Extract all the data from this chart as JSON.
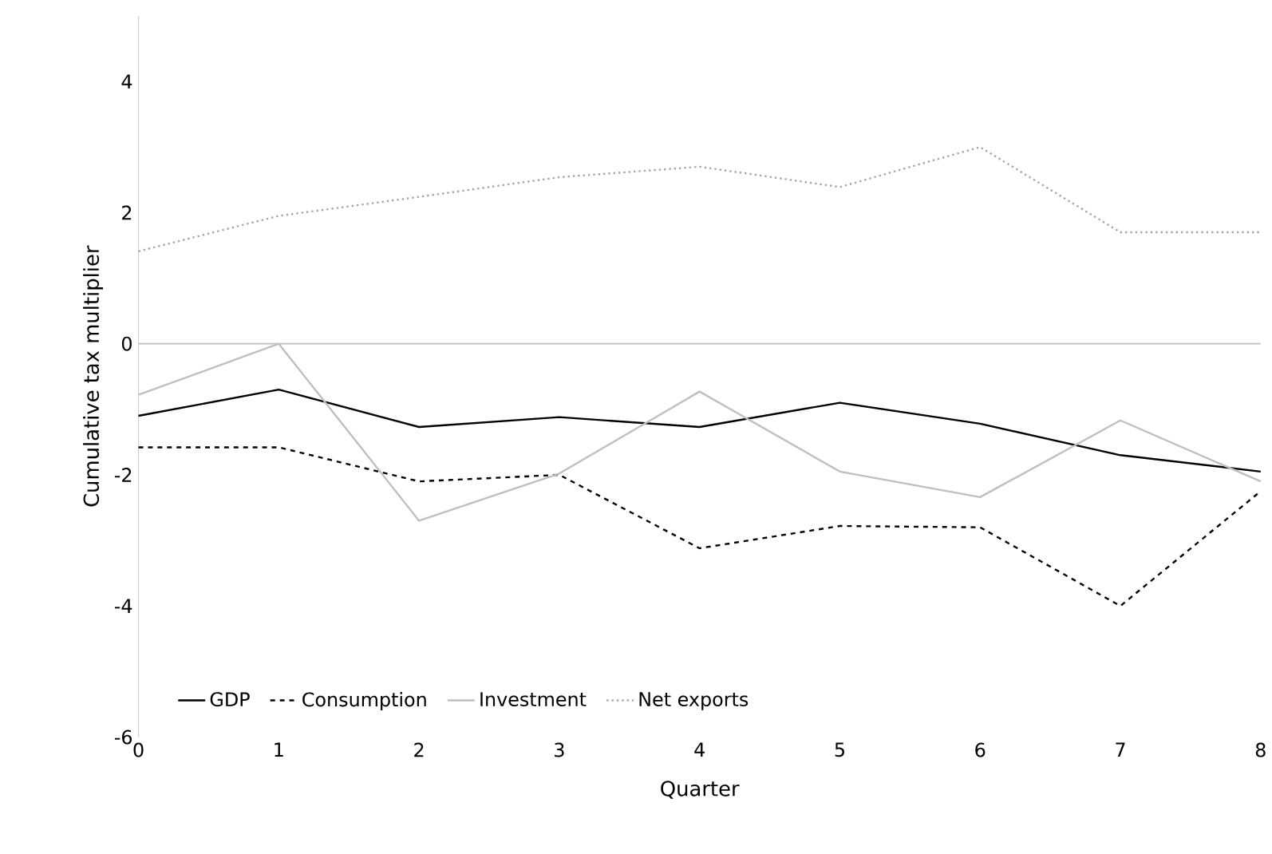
{
  "chart_data": {
    "type": "line",
    "xlabel": "Quarter",
    "ylabel": "Cumulative tax multiplier",
    "x": [
      0,
      1,
      2,
      3,
      4,
      5,
      6,
      7,
      8
    ],
    "series": [
      {
        "name": "GDP",
        "color": "#000000",
        "line_style": "solid",
        "values": [
          -1.1,
          -0.7,
          -1.27,
          -1.12,
          -1.27,
          -0.9,
          -1.22,
          -1.7,
          -1.95
        ]
      },
      {
        "name": "Consumption",
        "color": "#000000",
        "line_style": "dashed",
        "values": [
          -1.58,
          -1.58,
          -2.1,
          -2.0,
          -3.12,
          -2.78,
          -2.8,
          -4.0,
          -2.25
        ]
      },
      {
        "name": "Investment",
        "color": "#bfbfbf",
        "line_style": "solid",
        "values": [
          -0.78,
          0.0,
          -2.7,
          -1.98,
          -0.73,
          -1.95,
          -2.34,
          -1.17,
          -2.1
        ]
      },
      {
        "name": "Net exports",
        "color": "#a6a6a6",
        "line_style": "dotted",
        "values": [
          1.41,
          1.95,
          2.24,
          2.54,
          2.7,
          2.39,
          3.0,
          1.7,
          1.7
        ]
      }
    ],
    "xlim": [
      0,
      8
    ],
    "xticks": [
      0,
      1,
      2,
      3,
      4,
      5,
      6,
      7,
      8
    ],
    "ylim": [
      -6,
      5
    ],
    "yticks": [
      -6,
      -4,
      -2,
      0,
      2,
      4
    ],
    "ref_lines": [
      {
        "axis": "y",
        "value": 0,
        "color": "#bfbfbf"
      }
    ],
    "legend": "bottom left",
    "grid": false,
    "marker": "none"
  }
}
